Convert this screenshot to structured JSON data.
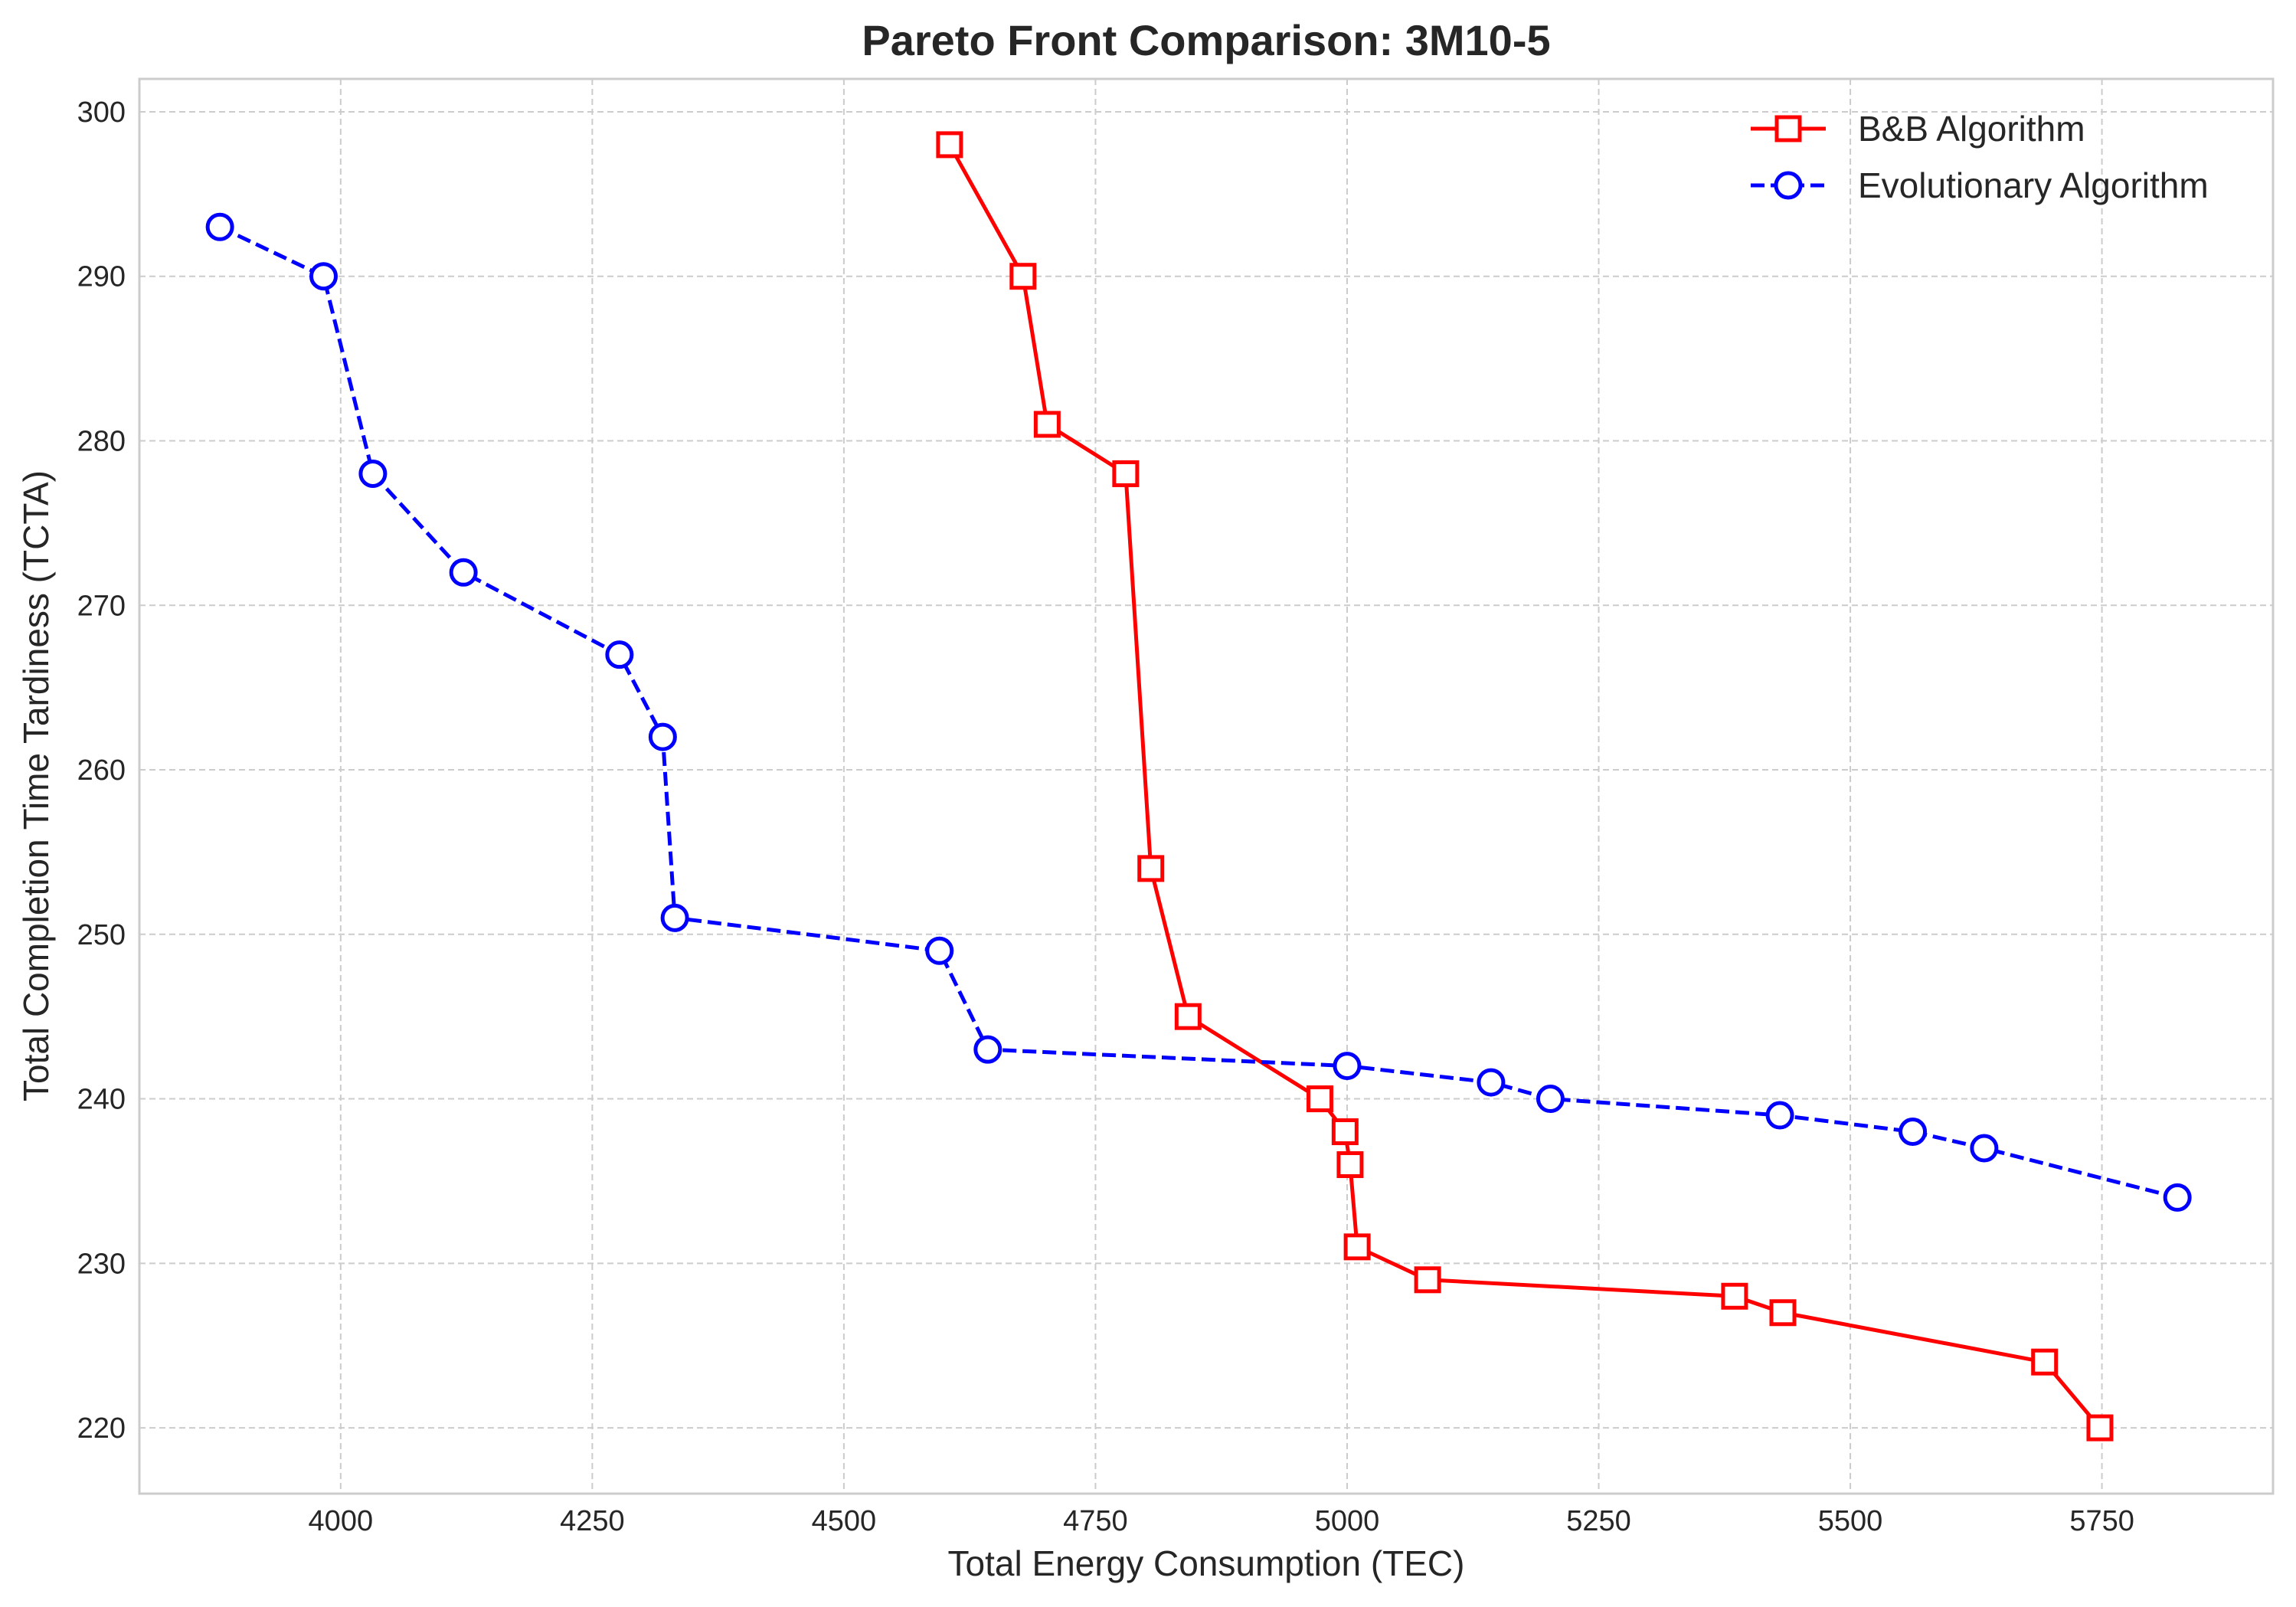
{
  "chart_data": {
    "type": "line",
    "title": "Pareto Front Comparison: 3M10-5",
    "xlabel": "Total Energy Consumption (TEC)",
    "ylabel": "Total Completion Time Tardiness (TCTA)",
    "xlim": [
      3800,
      5920
    ],
    "ylim": [
      216,
      302
    ],
    "xticks": [
      4000,
      4250,
      4500,
      4750,
      5000,
      5250,
      5500,
      5750
    ],
    "yticks": [
      220,
      230,
      240,
      250,
      260,
      270,
      280,
      290,
      300
    ],
    "grid": true,
    "legend_position": "top-right",
    "series": [
      {
        "name": "B&B Algorithm",
        "color": "#ff0000",
        "line_style": "solid",
        "marker": "square",
        "x": [
          4605,
          4678,
          4702,
          4780,
          4805,
          4842,
          4973,
          4998,
          5003,
          5010,
          5080,
          5385,
          5433,
          5693,
          5748
        ],
        "y": [
          298,
          290,
          281,
          278,
          254,
          245,
          240,
          238,
          236,
          231,
          229,
          228,
          227,
          224,
          220
        ]
      },
      {
        "name": "Evolutionary Algorithm",
        "color": "#0000ff",
        "line_style": "dashed",
        "marker": "circle",
        "x": [
          3880,
          3983,
          4032,
          4122,
          4277,
          4320,
          4332,
          4595,
          4643,
          5000,
          5143,
          5202,
          5430,
          5562,
          5633,
          5825
        ],
        "y": [
          293,
          290,
          278,
          272,
          267,
          262,
          251,
          249,
          243,
          242,
          241,
          240,
          239,
          238,
          237,
          234
        ]
      }
    ]
  }
}
